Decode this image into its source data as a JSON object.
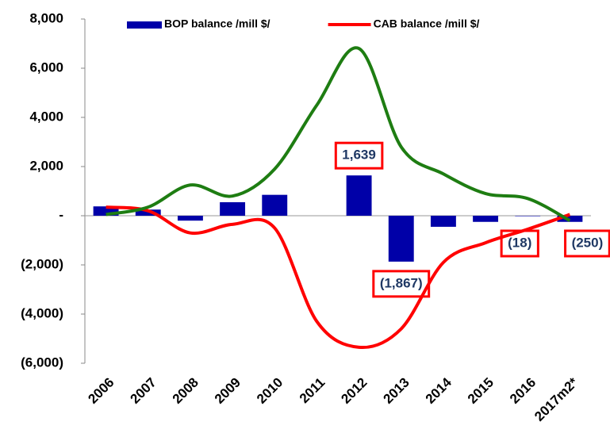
{
  "chart_data": {
    "type": "bar",
    "categories": [
      "2006",
      "2007",
      "2008",
      "2009",
      "2010",
      "2011",
      "2012",
      "2013",
      "2014",
      "2015",
      "2016",
      "2017m2*"
    ],
    "series": [
      {
        "name": "BOP balance /mill $/",
        "type": "bar",
        "color": "#0000a8",
        "values": [
          380,
          250,
          -200,
          550,
          850,
          0,
          1639,
          -1867,
          -450,
          -250,
          -18,
          -250
        ],
        "value_labels": [
          null,
          null,
          null,
          null,
          null,
          null,
          "1,639",
          "(1,867)",
          null,
          null,
          "(18)",
          "(250)"
        ]
      },
      {
        "name": "CAB balance /mill $/",
        "type": "line",
        "color": "#ff0000",
        "values": [
          350,
          200,
          -700,
          -350,
          -500,
          -4300,
          -5350,
          -4600,
          -1900,
          -1100,
          -550,
          50
        ]
      },
      {
        "type": "line",
        "color": "#1e7d12",
        "values": [
          50,
          350,
          1250,
          800,
          1900,
          4500,
          6800,
          2800,
          1700,
          900,
          700,
          -200
        ]
      }
    ],
    "ylim": [
      -6000,
      8000
    ],
    "yticks": [
      {
        "value": -6000,
        "label": "(6,000)"
      },
      {
        "value": -4000,
        "label": "(4,000)"
      },
      {
        "value": -2000,
        "label": "(2,000)"
      },
      {
        "value": 0,
        "label": "-"
      },
      {
        "value": 2000,
        "label": "2,000"
      },
      {
        "value": 4000,
        "label": "4,000"
      },
      {
        "value": 6000,
        "label": "6,000"
      },
      {
        "value": 8000,
        "label": "8,000"
      }
    ],
    "legend": "top"
  }
}
